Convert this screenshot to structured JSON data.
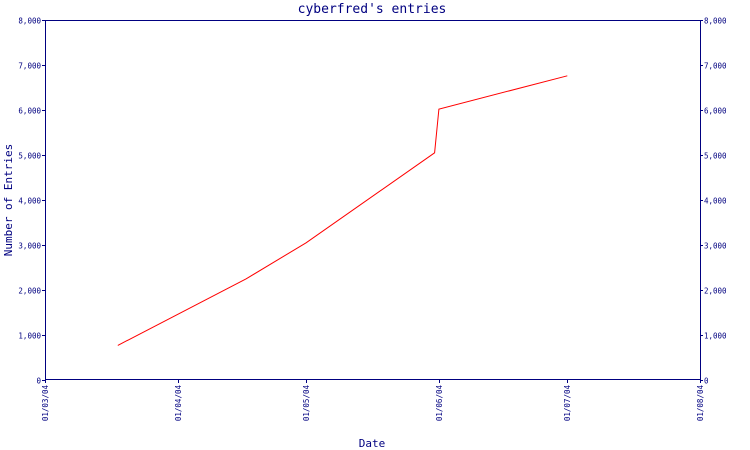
{
  "chart_data": {
    "type": "line",
    "title": "cyberfred's entries",
    "xlabel": "Date",
    "ylabel": "Number of Entries",
    "x_ticks": [
      "01/03/04",
      "01/04/04",
      "01/05/04",
      "01/06/04",
      "01/07/04",
      "01/08/04"
    ],
    "y_ticks": [
      "0",
      "1,000",
      "2,000",
      "3,000",
      "4,000",
      "5,000",
      "6,000",
      "7,000",
      "8,000"
    ],
    "ylim": [
      0,
      8000
    ],
    "xlim": [
      "01/03/04",
      "01/08/04"
    ],
    "grid": false,
    "right_axis_mirror": true,
    "series": [
      {
        "x": [
          "01/03/04",
          "2004-03-18",
          "2004-04-17",
          "2004-05-01",
          "2004-05-31",
          "2004-06-01",
          "2004-07-01"
        ],
        "values": [
          null,
          770,
          2250,
          3050,
          5050,
          6020,
          6760
        ],
        "color": "#ff0000"
      }
    ],
    "colors": {
      "axis": "#000080",
      "line": "#ff0000",
      "background": "#ffffff"
    }
  }
}
